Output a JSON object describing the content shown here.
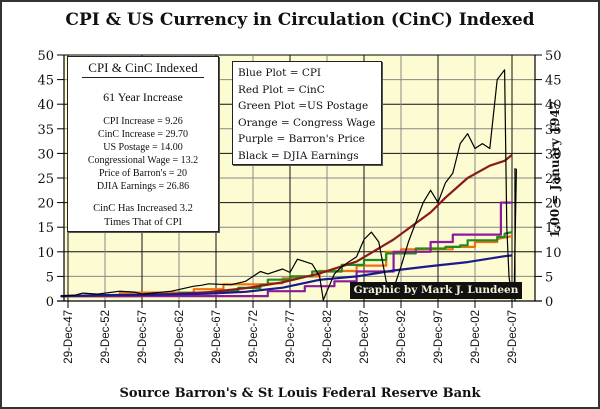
{
  "chart_data": {
    "type": "line",
    "title": "CPI & US Currency in Circulation (CinC) Indexed",
    "source": "Source Barron's & St Louis Federal Reserve Bank",
    "ylabel_right": "1.00 = January 1947",
    "ylim": [
      0,
      50
    ],
    "yticks": [
      "0",
      "5",
      "10",
      "15",
      "20",
      "25",
      "30",
      "35",
      "40",
      "45",
      "50"
    ],
    "xticks": [
      "29-Dec-47",
      "29-Dec-52",
      "29-Dec-57",
      "29-Dec-62",
      "29-Dec-67",
      "29-Dec-72",
      "29-Dec-77",
      "29-Dec-82",
      "29-Dec-87",
      "29-Dec-92",
      "29-Dec-97",
      "29-Dec-02",
      "29-Dec-07"
    ],
    "xlim_years": [
      1947,
      2008.5
    ],
    "grid": true,
    "credit": "Graphic by Mark J. Lundeen",
    "series": [
      {
        "name": "CPI",
        "color": "#1a1a8c",
        "x": [
          1947,
          1952,
          1957,
          1962,
          1967,
          1972,
          1977,
          1982,
          1987,
          1992,
          1997,
          2002,
          2007,
          2008
        ],
        "values": [
          1.0,
          1.18,
          1.27,
          1.35,
          1.5,
          1.86,
          2.7,
          4.3,
          5.0,
          6.2,
          7.1,
          7.9,
          9.1,
          9.26
        ]
      },
      {
        "name": "CinC",
        "color": "#8b1a1a",
        "x": [
          1947,
          1952,
          1957,
          1962,
          1967,
          1972,
          1977,
          1982,
          1987,
          1992,
          1997,
          1999,
          2002,
          2005,
          2007,
          2008
        ],
        "values": [
          1.0,
          1.1,
          1.2,
          1.4,
          1.8,
          2.6,
          3.8,
          5.6,
          8.0,
          12.5,
          18.0,
          21.0,
          25.0,
          27.5,
          28.5,
          29.7
        ]
      },
      {
        "name": "US Postage",
        "color": "#1e8c1e",
        "x": [
          1947,
          1958,
          1958,
          1963,
          1963,
          1968,
          1968,
          1971,
          1971,
          1974,
          1974,
          1975,
          1975,
          1978,
          1978,
          1981,
          1981,
          1985,
          1985,
          1988,
          1988,
          1991,
          1991,
          1995,
          1995,
          1999,
          1999,
          2001,
          2001,
          2002,
          2002,
          2006,
          2006,
          2007,
          2007,
          2008
        ],
        "values": [
          1.0,
          1.0,
          1.33,
          1.33,
          1.67,
          1.67,
          2.0,
          2.0,
          2.67,
          2.67,
          3.33,
          3.33,
          4.33,
          4.33,
          5.0,
          5.0,
          6.0,
          6.0,
          7.33,
          7.33,
          8.33,
          8.33,
          9.67,
          9.67,
          10.67,
          10.67,
          11.0,
          11.0,
          11.33,
          11.33,
          12.33,
          12.33,
          13.0,
          13.0,
          13.67,
          14.0
        ]
      },
      {
        "name": "Congress Wage",
        "color": "#f07010",
        "x": [
          1947,
          1955,
          1955,
          1965,
          1965,
          1969,
          1969,
          1975,
          1975,
          1977,
          1977,
          1979,
          1979,
          1982,
          1982,
          1987,
          1987,
          1991,
          1991,
          1993,
          1993,
          2000,
          2000,
          2003,
          2003,
          2006,
          2006,
          2008
        ],
        "values": [
          1.0,
          1.0,
          1.7,
          1.7,
          2.4,
          2.4,
          3.4,
          3.4,
          3.6,
          3.6,
          4.6,
          4.6,
          5.0,
          5.0,
          6.1,
          6.1,
          7.2,
          7.2,
          10.0,
          10.0,
          10.5,
          10.5,
          11.0,
          11.0,
          12.0,
          12.0,
          12.6,
          13.2
        ]
      },
      {
        "name": "Barron's Price",
        "color": "#8c1a9c",
        "x": [
          1947,
          1975,
          1975,
          1980,
          1980,
          1984,
          1984,
          1987,
          1987,
          1992,
          1992,
          1997,
          1997,
          2000,
          2000,
          2006.5,
          2006.5,
          2008
        ],
        "values": [
          1.0,
          1.0,
          2.0,
          2.0,
          3.0,
          3.0,
          4.0,
          4.0,
          6.0,
          6.0,
          10.0,
          10.0,
          12.0,
          12.0,
          13.5,
          13.5,
          20.0,
          20.0
        ]
      },
      {
        "name": "DJIA Earnings",
        "color": "#000000",
        "x": [
          1947,
          1949,
          1950,
          1952,
          1955,
          1957,
          1958,
          1962,
          1965,
          1966,
          1967,
          1970,
          1972,
          1974,
          1975,
          1977,
          1978,
          1979,
          1980,
          1981,
          1982,
          1982.5,
          1983,
          1984,
          1985,
          1986,
          1987,
          1988,
          1989,
          1990,
          1991,
          1991.5,
          1992,
          1993,
          1994,
          1995,
          1996,
          1997,
          1998,
          1999,
          2000,
          2001,
          2002,
          2003,
          2004,
          2005,
          2006,
          2007,
          2007.3,
          2007.6,
          2008,
          2008.3,
          2008.6
        ],
        "values": [
          1.0,
          1.2,
          1.6,
          1.4,
          2.0,
          1.8,
          1.4,
          2.0,
          3.0,
          3.2,
          3.5,
          3.3,
          4.0,
          6.0,
          5.5,
          6.5,
          5.8,
          8.5,
          8.0,
          7.5,
          5.0,
          0.2,
          2.0,
          5.5,
          7.0,
          8.0,
          9.0,
          12.5,
          14.0,
          12.0,
          4.0,
          0.8,
          2.5,
          7.0,
          12.0,
          16.0,
          20.0,
          22.5,
          20.0,
          24.0,
          26.0,
          32.0,
          34.0,
          31.0,
          32.0,
          31.0,
          45.0,
          47.0,
          15.0,
          5.0,
          0.4,
          2.0,
          26.86
        ]
      }
    ]
  }
}
